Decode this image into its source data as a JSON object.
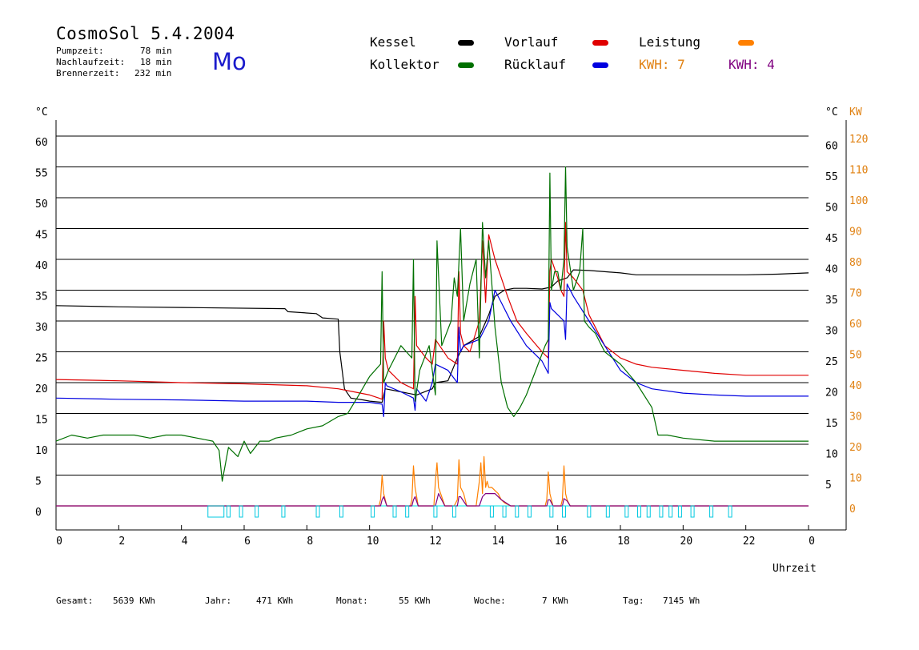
{
  "header": {
    "title": "CosmoSol 5.4.2004",
    "day": "Mo",
    "stats": [
      {
        "label": "Pumpzeit:",
        "value": "78 min"
      },
      {
        "label": "Nachlaufzeit:",
        "value": "18 min"
      },
      {
        "label": "Brennerzeit:",
        "value": "232 min"
      }
    ]
  },
  "legend": {
    "items": [
      {
        "label": "Kessel",
        "color": "#000000"
      },
      {
        "label": "Kollektor",
        "color": "#007000"
      },
      {
        "label": "Vorlauf",
        "color": "#e00000"
      },
      {
        "label": "Rücklauf",
        "color": "#0000e0"
      },
      {
        "label": "Leistung",
        "color": "#ff8000"
      }
    ],
    "kwh_orange": "KWH: 7",
    "kwh_purple": "KWH: 4",
    "kwh_orange_color": "#e08010",
    "kwh_purple_color": "#800080"
  },
  "footer": [
    {
      "label": "Gesamt:",
      "value": "5639 KWh"
    },
    {
      "label": "Jahr:",
      "value": "471 KWh"
    },
    {
      "label": "Monat:",
      "value": "55 KWh"
    },
    {
      "label": "Woche:",
      "value": "7 KWh"
    },
    {
      "label": "Tag:",
      "value": "7145 Wh"
    }
  ],
  "chart_data": {
    "type": "line",
    "xlabel": "Uhrzeit",
    "ylabel_left": "°C",
    "ylabel_right_temp": "°C",
    "ylabel_right_power": "KW",
    "xlim": [
      0,
      24
    ],
    "ylim": [
      0,
      60
    ],
    "x_ticks": [
      "0",
      "2",
      "4",
      "6",
      "8",
      "10",
      "12",
      "14",
      "16",
      "18",
      "20",
      "22",
      "0"
    ],
    "y_ticks_left": [
      "0",
      "5",
      "10",
      "15",
      "20",
      "25",
      "30",
      "35",
      "40",
      "45",
      "50",
      "55",
      "60"
    ],
    "y_ticks_right_temp": [
      "5",
      "10",
      "15",
      "20",
      "25",
      "30",
      "35",
      "40",
      "45",
      "50",
      "55",
      "60"
    ],
    "y_ticks_right_power": [
      "0",
      "10",
      "20",
      "30",
      "40",
      "50",
      "60",
      "70",
      "80",
      "90",
      "100",
      "110",
      "120"
    ],
    "grid": true,
    "series": [
      {
        "name": "Kessel",
        "color": "#000000",
        "x": [
          0,
          2,
          4,
          7.3,
          7.4,
          8.3,
          8.5,
          9.0,
          9.05,
          9.2,
          9.4,
          9.8,
          10.0,
          10.4,
          10.5,
          11.0,
          11.5,
          12.0,
          12.1,
          12.5,
          12.8,
          13.0,
          13.5,
          13.8,
          14.0,
          14.3,
          14.6,
          15.0,
          15.5,
          15.8,
          16.0,
          16.3,
          16.5,
          17.0,
          17.5,
          18.0,
          18.5,
          19.0,
          20.0,
          21.0,
          22.0,
          23.0,
          24.0
        ],
        "y": [
          32.5,
          32.3,
          32.2,
          32.0,
          31.5,
          31.2,
          30.5,
          30.3,
          25.0,
          19.0,
          17.5,
          17.2,
          17.0,
          16.8,
          19.0,
          18.5,
          18.0,
          19.0,
          20.0,
          20.3,
          24.0,
          26.0,
          27.5,
          31.0,
          34.0,
          35.0,
          35.3,
          35.3,
          35.2,
          35.5,
          36.5,
          37.0,
          38.3,
          38.2,
          38.0,
          37.8,
          37.5,
          37.5,
          37.5,
          37.5,
          37.5,
          37.6,
          37.8
        ]
      },
      {
        "name": "Vorlauf",
        "color": "#e00000",
        "x": [
          0,
          2,
          4,
          6,
          8,
          9,
          9.5,
          10.0,
          10.3,
          10.4,
          10.45,
          10.5,
          10.6,
          11.0,
          11.4,
          11.45,
          11.5,
          11.8,
          12.0,
          12.1,
          12.5,
          12.8,
          12.85,
          12.9,
          13.0,
          13.2,
          13.5,
          13.6,
          13.7,
          13.8,
          14.0,
          14.2,
          14.4,
          14.7,
          15.0,
          15.5,
          15.7,
          15.75,
          15.8,
          16.0,
          16.1,
          16.2,
          16.25,
          16.3,
          16.5,
          16.8,
          17.0,
          17.5,
          18.0,
          18.5,
          19.0,
          20.0,
          21.0,
          22.0,
          23.0,
          24.0
        ],
        "y": [
          20.5,
          20.3,
          20.0,
          19.8,
          19.5,
          19.0,
          18.5,
          18.0,
          17.5,
          17.3,
          30.0,
          24.0,
          22.0,
          20.0,
          19.0,
          34.0,
          26.0,
          24.0,
          23.0,
          27.0,
          24.0,
          23.0,
          38.0,
          28.0,
          26.0,
          25.0,
          30.0,
          43.0,
          33.0,
          44.0,
          40.0,
          37.0,
          34.0,
          30.0,
          28.0,
          25.0,
          24.0,
          38.0,
          40.0,
          37.0,
          35.0,
          34.0,
          46.0,
          38.0,
          37.0,
          35.0,
          31.0,
          26.0,
          24.0,
          23.0,
          22.5,
          22.0,
          21.5,
          21.2,
          21.2,
          21.2
        ]
      },
      {
        "name": "Rücklauf",
        "color": "#0000e0",
        "x": [
          0,
          2,
          4,
          6,
          8,
          9,
          10.0,
          10.4,
          10.45,
          10.5,
          10.55,
          11.0,
          11.4,
          11.45,
          11.5,
          11.8,
          12.0,
          12.1,
          12.5,
          12.8,
          12.85,
          12.9,
          13.0,
          13.5,
          13.8,
          14.0,
          14.2,
          14.5,
          15.0,
          15.5,
          15.7,
          15.75,
          15.8,
          16.0,
          16.2,
          16.25,
          16.3,
          16.5,
          17.0,
          17.5,
          18.0,
          18.5,
          19.0,
          20.0,
          21.0,
          22.0,
          23.0,
          24.0
        ],
        "y": [
          17.5,
          17.3,
          17.2,
          17.0,
          17.0,
          16.8,
          16.8,
          16.5,
          14.5,
          20.0,
          19.5,
          18.5,
          17.5,
          15.5,
          19.0,
          17.0,
          20.0,
          23.0,
          22.0,
          20.0,
          29.0,
          25.0,
          26.0,
          27.0,
          30.0,
          35.0,
          33.0,
          30.0,
          26.0,
          23.5,
          21.5,
          33.0,
          32.0,
          31.0,
          30.0,
          27.0,
          36.0,
          34.0,
          30.0,
          26.0,
          22.0,
          20.0,
          19.0,
          18.3,
          18.0,
          17.8,
          17.8,
          17.8
        ]
      },
      {
        "name": "Kollektor",
        "color": "#007000",
        "x": [
          0,
          0.5,
          1,
          1.5,
          2,
          2.5,
          3,
          3.5,
          4,
          4.5,
          5,
          5.2,
          5.3,
          5.5,
          5.8,
          6.0,
          6.2,
          6.5,
          6.8,
          7.0,
          7.5,
          8.0,
          8.5,
          9.0,
          9.3,
          9.6,
          10.0,
          10.35,
          10.4,
          10.45,
          10.6,
          11.0,
          11.35,
          11.4,
          11.45,
          11.6,
          11.9,
          12.1,
          12.15,
          12.3,
          12.6,
          12.7,
          12.8,
          12.9,
          13.0,
          13.2,
          13.4,
          13.5,
          13.6,
          13.7,
          13.8,
          14.0,
          14.2,
          14.4,
          14.6,
          14.8,
          15.0,
          15.3,
          15.6,
          15.7,
          15.75,
          15.8,
          15.9,
          16.0,
          16.1,
          16.2,
          16.25,
          16.3,
          16.5,
          16.7,
          16.8,
          16.85,
          17.0,
          17.2,
          17.5,
          18.0,
          18.5,
          19.0,
          19.2,
          19.5,
          20.0,
          21.0,
          22.0,
          23.0,
          24.0
        ],
        "y": [
          10.5,
          11.5,
          11.0,
          11.5,
          11.5,
          11.5,
          11.0,
          11.5,
          11.5,
          11.0,
          10.5,
          9.0,
          4.0,
          9.5,
          8.0,
          10.5,
          8.5,
          10.5,
          10.5,
          11.0,
          11.5,
          12.5,
          13.0,
          14.5,
          15.0,
          17.5,
          21.0,
          23.0,
          38.0,
          20.0,
          22.0,
          26.0,
          24.0,
          40.0,
          17.0,
          22.0,
          26.0,
          18.0,
          43.0,
          26.0,
          30.0,
          37.0,
          34.0,
          45.0,
          30.0,
          36.0,
          40.0,
          24.0,
          46.0,
          37.0,
          43.0,
          29.0,
          20.0,
          16.0,
          14.5,
          16.0,
          18.0,
          22.0,
          26.0,
          27.0,
          54.0,
          35.0,
          38.0,
          38.0,
          35.0,
          40.0,
          55.0,
          42.0,
          35.0,
          38.0,
          45.0,
          30.0,
          29.0,
          28.0,
          25.0,
          23.0,
          20.0,
          16.0,
          11.5,
          11.5,
          11.0,
          10.5,
          10.5,
          10.5,
          10.5
        ]
      },
      {
        "name": "Leistung",
        "color": "#ff8000",
        "x": [
          0,
          10.3,
          10.35,
          10.4,
          10.45,
          10.55,
          11.3,
          11.35,
          11.4,
          11.45,
          11.55,
          12.05,
          12.1,
          12.15,
          12.2,
          12.3,
          12.4,
          12.7,
          12.8,
          12.85,
          12.9,
          13.0,
          13.1,
          13.4,
          13.5,
          13.55,
          13.6,
          13.65,
          13.7,
          13.75,
          13.8,
          13.9,
          14.0,
          14.1,
          14.2,
          14.3,
          14.5,
          15.6,
          15.65,
          15.7,
          15.75,
          15.85,
          16.1,
          16.15,
          16.2,
          16.25,
          16.3,
          16.4,
          24.0
        ],
        "y": [
          0,
          0,
          1,
          5,
          2,
          0,
          0,
          1,
          6.5,
          3,
          0,
          0,
          4,
          7,
          3,
          1.5,
          0,
          0,
          1,
          7.5,
          3,
          2,
          0,
          0,
          4,
          7,
          2,
          8,
          3,
          4,
          3,
          3,
          2.5,
          2,
          1,
          0.5,
          0,
          0,
          1,
          5.5,
          2,
          0,
          0,
          1,
          6.5,
          2,
          1,
          0,
          0
        ]
      },
      {
        "name": "KWH",
        "color": "#800080",
        "x": [
          0,
          10.35,
          10.4,
          10.45,
          10.55,
          11.35,
          11.4,
          11.45,
          11.55,
          12.1,
          12.15,
          12.2,
          12.4,
          12.8,
          12.85,
          12.9,
          13.1,
          13.5,
          13.6,
          13.7,
          13.8,
          14.0,
          14.2,
          14.5,
          15.65,
          15.7,
          15.75,
          15.85,
          16.15,
          16.2,
          16.3,
          16.4,
          24.0
        ],
        "y": [
          0,
          0,
          1,
          1.5,
          0,
          0,
          1,
          1.5,
          0,
          0,
          1,
          2,
          0,
          0,
          1.5,
          1.5,
          0,
          0,
          1.5,
          2,
          2,
          2,
          1,
          0,
          0,
          1,
          1,
          0,
          0,
          1.2,
          0.8,
          0,
          0
        ]
      }
    ],
    "pump_markers": [
      5.1,
      5.5,
      5.9,
      6.4,
      7.25,
      8.35,
      9.1,
      10.1,
      10.8,
      11.2,
      12.1,
      12.7,
      13.9,
      14.3,
      14.7,
      15.1,
      15.8,
      16.2,
      17.0,
      17.6,
      18.2,
      18.6,
      18.9,
      19.3,
      19.6,
      19.9,
      20.3,
      20.9,
      21.5
    ]
  }
}
